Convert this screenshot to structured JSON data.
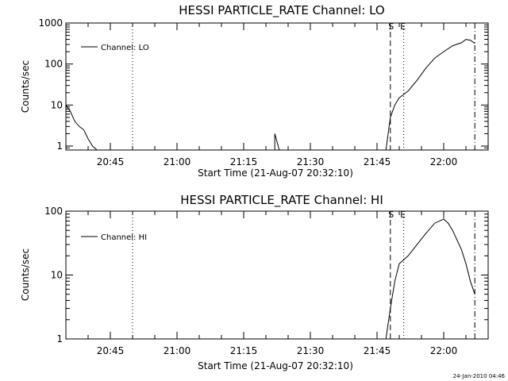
{
  "footer": {
    "stamp": "24-Jan-2010 04:46"
  },
  "chart_data": [
    {
      "type": "line",
      "title": "HESSI PARTICLE_RATE Channel: LO",
      "xlabel": "Start Time (21-Aug-07 20:32:10)",
      "ylabel": "Counts/sec",
      "x_unit": "time (hh:mm, 21-Aug-07)",
      "xlim": [
        "20:35",
        "22:10"
      ],
      "ylim": [
        0.8,
        1000
      ],
      "y_scale": "log",
      "x_ticks": [
        "20:45",
        "21:00",
        "21:15",
        "21:30",
        "21:45",
        "22:00"
      ],
      "y_ticks": [
        "1",
        "10",
        "100",
        "1000"
      ],
      "legend": {
        "position": "top-left",
        "entries": [
          "Channel: LO"
        ]
      },
      "markers": [
        {
          "label": "",
          "x": "20:50",
          "style": "dotted"
        },
        {
          "label": "S",
          "x": "21:48",
          "style": "dashed"
        },
        {
          "label": "E",
          "x": "21:51",
          "style": "dotted"
        },
        {
          "label": "",
          "x": "22:07",
          "style": "dash-dot"
        }
      ],
      "series": [
        {
          "name": "Channel: LO",
          "x": [
            "20:35",
            "20:36",
            "20:37",
            "20:38",
            "20:39",
            "20:40",
            "20:41",
            "20:42",
            "21:22",
            "21:22",
            "21:23",
            "21:47",
            "21:48",
            "21:49",
            "21:50",
            "21:52",
            "21:54",
            "21:56",
            "21:58",
            "22:00",
            "22:02",
            "22:04",
            "22:05",
            "22:06",
            "22:07"
          ],
          "values": [
            10,
            7,
            4,
            3,
            2.5,
            1.5,
            1,
            0.8,
            0.8,
            2,
            0.8,
            0.8,
            5,
            10,
            15,
            22,
            40,
            80,
            140,
            200,
            280,
            330,
            400,
            380,
            320
          ]
        }
      ]
    },
    {
      "type": "line",
      "title": "HESSI PARTICLE_RATE Channel: HI",
      "xlabel": "Start Time (21-Aug-07 20:32:10)",
      "ylabel": "Counts/sec",
      "x_unit": "time (hh:mm, 21-Aug-07)",
      "xlim": [
        "20:35",
        "22:10"
      ],
      "ylim": [
        1,
        100
      ],
      "y_scale": "log",
      "x_ticks": [
        "20:45",
        "21:00",
        "21:15",
        "21:30",
        "21:45",
        "22:00"
      ],
      "y_ticks": [
        "1",
        "10",
        "100"
      ],
      "legend": {
        "position": "top-left",
        "entries": [
          "Channel: HI"
        ]
      },
      "markers": [
        {
          "label": "",
          "x": "20:50",
          "style": "dotted"
        },
        {
          "label": "S",
          "x": "21:48",
          "style": "dashed"
        },
        {
          "label": "E",
          "x": "21:51",
          "style": "dotted"
        },
        {
          "label": "",
          "x": "22:07",
          "style": "dash-dot"
        }
      ],
      "series": [
        {
          "name": "Channel: HI",
          "x": [
            "21:47",
            "21:48",
            "21:49",
            "21:50",
            "21:52",
            "21:54",
            "21:56",
            "21:58",
            "22:00",
            "22:01",
            "22:02",
            "22:04",
            "22:05",
            "22:06",
            "22:07"
          ],
          "values": [
            1,
            3,
            8,
            15,
            20,
            30,
            45,
            65,
            75,
            65,
            50,
            25,
            15,
            8,
            5
          ]
        }
      ]
    }
  ]
}
